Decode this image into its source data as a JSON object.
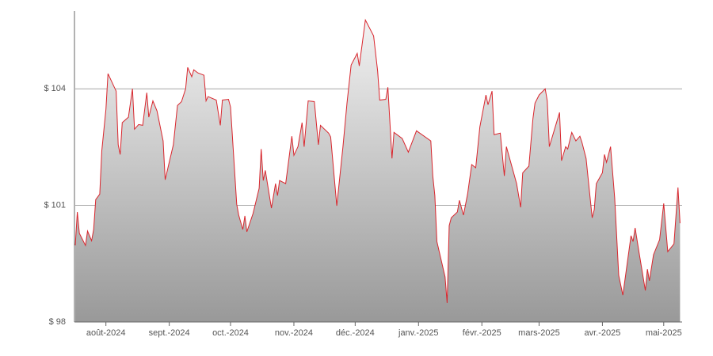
{
  "chart_data": {
    "type": "area",
    "color": "#d9262d",
    "grid": true,
    "xlim": [
      0,
      297
    ],
    "ylim": [
      98,
      106
    ],
    "yticks": [
      {
        "value": 98,
        "label": "$ 98"
      },
      {
        "value": 101,
        "label": "$ 101"
      },
      {
        "value": 104,
        "label": "$ 104"
      }
    ],
    "xticks": [
      {
        "value": 15,
        "label": "août-2024"
      },
      {
        "value": 46,
        "label": "sept.-2024"
      },
      {
        "value": 76,
        "label": "oct.-2024"
      },
      {
        "value": 107,
        "label": "nov.-2024"
      },
      {
        "value": 137,
        "label": "déc.-2024"
      },
      {
        "value": 168,
        "label": "janv.-2025"
      },
      {
        "value": 199,
        "label": "févr.-2025"
      },
      {
        "value": 227,
        "label": "mars-2025"
      },
      {
        "value": 258,
        "label": "avr.-2025"
      },
      {
        "value": 288,
        "label": "mai-2025"
      }
    ],
    "x": [
      0,
      1,
      2,
      5,
      6,
      8,
      9,
      10,
      12,
      13,
      15,
      16,
      20,
      21,
      22,
      23,
      26,
      27,
      28,
      29,
      31,
      33,
      35,
      36,
      38,
      40,
      43,
      44,
      46,
      48,
      50,
      52,
      54,
      55,
      57,
      58,
      60,
      63,
      64,
      65,
      69,
      71,
      72,
      75,
      76,
      79,
      80,
      82,
      83,
      84,
      87,
      90,
      91,
      92,
      93,
      96,
      98,
      99,
      100,
      103,
      106,
      107,
      109,
      111,
      112,
      114,
      117,
      119,
      120,
      124,
      125,
      128,
      131,
      133,
      135,
      138,
      139,
      142,
      146,
      148,
      149,
      152,
      153,
      155,
      156,
      160,
      163,
      167,
      174,
      175,
      176,
      177,
      181,
      182,
      183,
      184,
      187,
      188,
      190,
      192,
      194,
      196,
      198,
      201,
      202,
      204,
      205,
      208,
      210,
      211,
      216,
      218,
      219,
      222,
      224,
      225,
      227,
      230,
      231,
      232,
      237,
      238,
      240,
      241,
      243,
      245,
      247,
      248,
      250,
      253,
      254,
      255,
      258,
      259,
      260,
      262,
      264,
      266,
      268,
      272,
      273,
      274,
      276,
      279,
      280,
      281,
      283,
      286,
      288,
      290,
      293,
      295,
      296
    ],
    "values": [
      99.97,
      100.83,
      100.28,
      99.97,
      100.34,
      100.09,
      100.38,
      101.15,
      101.29,
      102.41,
      103.47,
      104.39,
      103.94,
      102.56,
      102.31,
      103.13,
      103.27,
      103.63,
      104.0,
      102.96,
      103.08,
      103.06,
      103.9,
      103.27,
      103.69,
      103.43,
      102.66,
      101.66,
      102.11,
      102.56,
      103.57,
      103.67,
      104.0,
      104.55,
      104.31,
      104.49,
      104.41,
      104.35,
      103.69,
      103.8,
      103.71,
      103.06,
      103.71,
      103.73,
      103.53,
      101.03,
      100.75,
      100.38,
      100.73,
      100.32,
      100.79,
      101.44,
      102.45,
      101.64,
      101.9,
      100.93,
      101.56,
      101.25,
      101.64,
      101.56,
      102.78,
      102.29,
      102.51,
      103.13,
      102.51,
      103.69,
      103.67,
      102.56,
      103.06,
      102.86,
      102.76,
      100.99,
      102.51,
      103.63,
      104.61,
      104.91,
      104.59,
      105.77,
      105.36,
      104.45,
      103.71,
      103.73,
      104.04,
      102.21,
      102.88,
      102.72,
      102.37,
      102.92,
      102.66,
      101.76,
      101.25,
      100.07,
      99.16,
      98.49,
      100.48,
      100.68,
      100.83,
      101.13,
      100.75,
      101.29,
      102.05,
      101.97,
      103.02,
      103.84,
      103.59,
      103.94,
      102.82,
      102.86,
      101.76,
      102.51,
      101.56,
      100.95,
      101.84,
      102.01,
      103.23,
      103.63,
      103.84,
      104.0,
      103.69,
      102.51,
      103.39,
      102.15,
      102.51,
      102.45,
      102.88,
      102.66,
      102.78,
      102.62,
      102.21,
      100.68,
      100.89,
      101.56,
      101.84,
      102.31,
      102.11,
      102.51,
      101.19,
      99.2,
      98.69,
      100.22,
      100.07,
      100.42,
      99.77,
      98.81,
      99.36,
      99.06,
      99.73,
      100.12,
      101.05,
      99.81,
      100.01,
      101.46,
      100.54
    ]
  }
}
